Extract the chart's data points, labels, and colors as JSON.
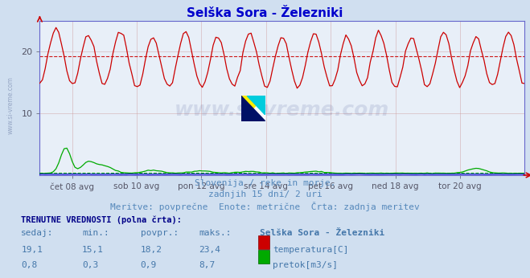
{
  "title": "Selška Sora - Železniki",
  "title_color": "#0000cc",
  "background_color": "#d0dff0",
  "plot_background_color": "#e8eff8",
  "x_labels": [
    "čet 08 avg",
    "sob 10 avg",
    "pon 12 avg",
    "sre 14 avg",
    "pet 16 avg",
    "ned 18 avg",
    "tor 20 avg"
  ],
  "x_ticks_pos": [
    1,
    3,
    5,
    7,
    9,
    11,
    13
  ],
  "ylim": [
    0,
    25
  ],
  "y_ticks": [
    10,
    20
  ],
  "temp_avg": 19.3,
  "flow_avg": 0.4,
  "temp_color": "#cc0000",
  "flow_color": "#00aa00",
  "height_color": "#0000cc",
  "avg_line_color": "#cc0000",
  "grid_color": "#cc9999",
  "grid_x_color": "#cc9999",
  "subtitle1": "Slovenija / reke in morje.",
  "subtitle2": "zadnjih 15 dni/ 2 uri",
  "subtitle3": "Meritve: povprečne  Enote: metrične  Črta: zadnja meritev",
  "subtitle_color": "#5588bb",
  "info_header": "TRENUTNE VREDNOSTI (polna črta):",
  "col_headers": [
    "sedaj:",
    "min.:",
    "povpr.:",
    "maks.:",
    "Selška Sora - Železniki"
  ],
  "temp_row": [
    "19,1",
    "15,1",
    "18,2",
    "23,4",
    "temperatura[C]"
  ],
  "flow_row": [
    "0,8",
    "0,3",
    "0,9",
    "8,7",
    "pretok[m3/s]"
  ],
  "watermark": "www.si-vreme.com",
  "n_days": 15,
  "n_per_day": 12,
  "axis_color": "#6666cc",
  "arrow_color": "#cc0000"
}
